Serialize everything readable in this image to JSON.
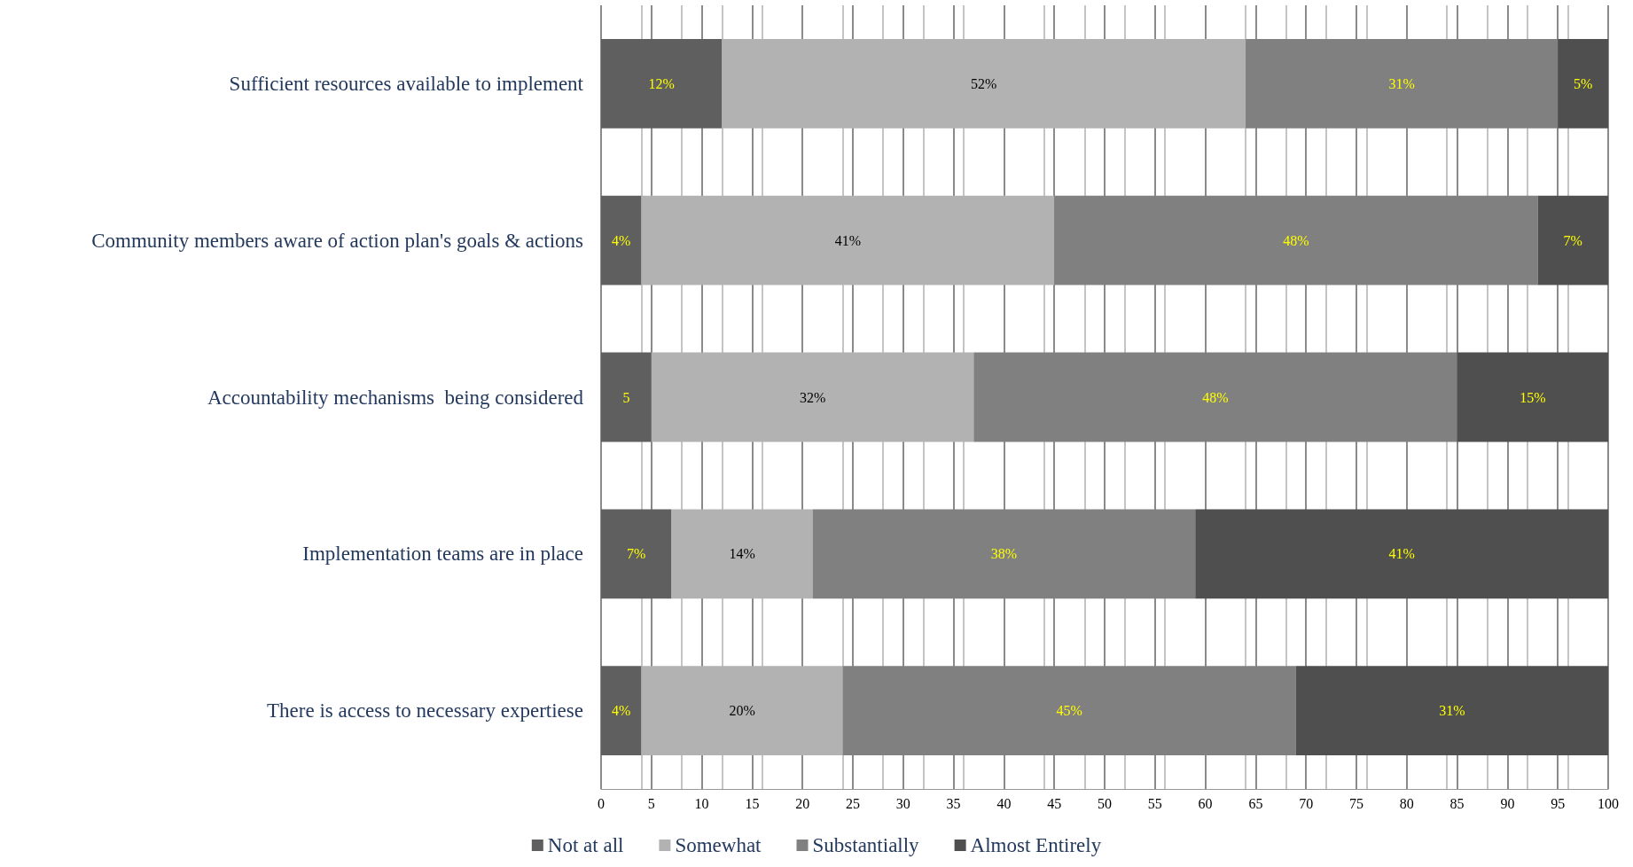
{
  "chart_data": {
    "type": "bar",
    "orientation": "horizontal",
    "stacked": true,
    "categories": [
      "Sufficient resources available to implement",
      "Community members aware of action plan's goals & actions",
      "Accountability mechanisms  being considered",
      "Implementation teams are in place",
      "There is access to necessary expertiese"
    ],
    "series": [
      {
        "name": "Not at all",
        "color": "#5f5f5f",
        "values": [
          12,
          4,
          5,
          7,
          4
        ],
        "value_labels": [
          "12%",
          "4%",
          "5",
          "7%",
          "4%"
        ]
      },
      {
        "name": "Somewhat",
        "color": "#b2b2b2",
        "values": [
          52,
          41,
          32,
          14,
          20
        ],
        "value_labels": [
          "52%",
          "41%",
          "32%",
          "14%",
          "20%"
        ]
      },
      {
        "name": "Substantially",
        "color": "#808080",
        "values": [
          31,
          48,
          48,
          38,
          45
        ],
        "value_labels": [
          "31%",
          "48%",
          "48%",
          "38%",
          "45%"
        ]
      },
      {
        "name": "Almost Entirely",
        "color": "#4f4f4f",
        "values": [
          5,
          7,
          15,
          41,
          31
        ],
        "value_labels": [
          "5%",
          "7%",
          "15%",
          "41%",
          "31%"
        ]
      }
    ],
    "xlim": [
      0,
      100
    ],
    "xticks": [
      0,
      5,
      10,
      15,
      20,
      25,
      30,
      35,
      40,
      45,
      50,
      55,
      60,
      65,
      70,
      75,
      80,
      85,
      90,
      95,
      100
    ],
    "grid": "x",
    "legend": "bottom"
  }
}
